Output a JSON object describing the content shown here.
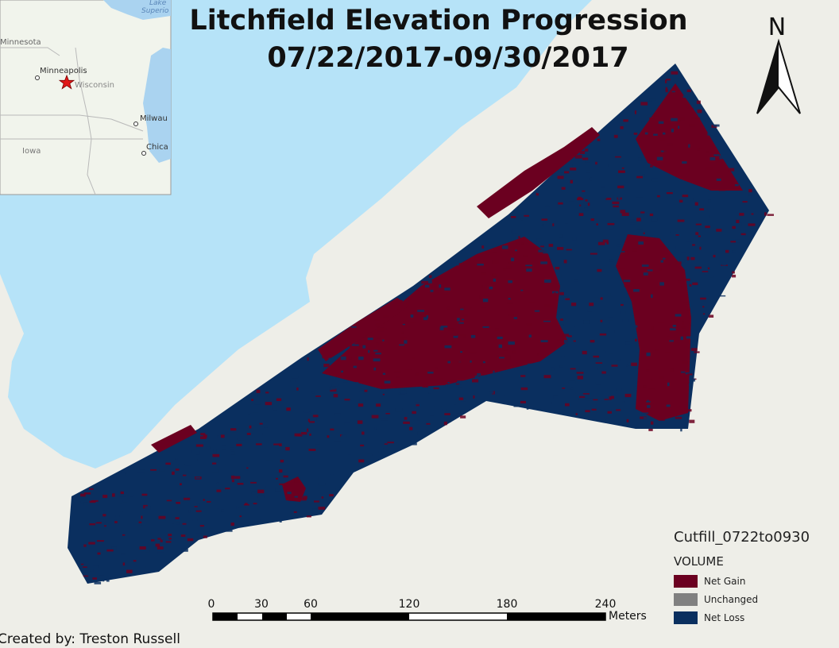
{
  "title": {
    "line1": "Litchfield Elevation Progression",
    "line2": "07/22/2017-09/30/2017"
  },
  "north_arrow": {
    "label": "N"
  },
  "inset_map": {
    "labels": {
      "lake": "Lake",
      "superior": "Superio",
      "minnesota": "Minnesota",
      "minneapolis": "Minneapolis",
      "wisconsin": "Wisconsin",
      "milwaukee": "Milwau",
      "iowa": "Iowa",
      "chicago": "Chica"
    },
    "study_site_marker": "red-star"
  },
  "legend": {
    "layer_name": "Cutfill_0722to0930",
    "field_name": "VOLUME",
    "classes": [
      {
        "label": "Net Gain",
        "color": "#6b0020"
      },
      {
        "label": "Unchanged",
        "color": "#808080"
      },
      {
        "label": "Net Loss",
        "color": "#0a2f5f"
      }
    ]
  },
  "scale_bar": {
    "ticks": [
      "0",
      "30",
      "60",
      "120",
      "180",
      "240"
    ],
    "units": "Meters"
  },
  "credit": "Created by: Treston Russell",
  "colors": {
    "background": "#eeeee8",
    "water": "#b6e3f8",
    "net_gain": "#6b0020",
    "net_loss": "#0a2f5f",
    "unchanged": "#808080"
  }
}
